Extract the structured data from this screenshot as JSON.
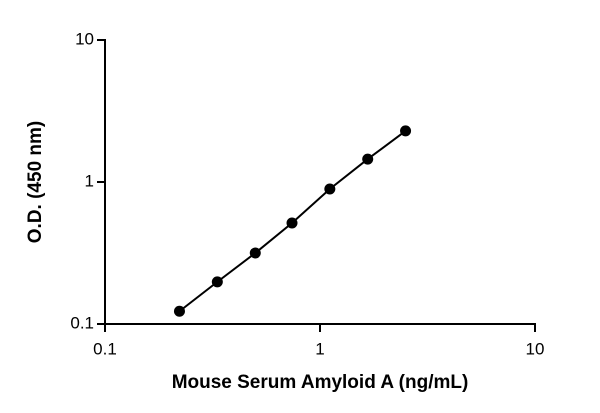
{
  "chart_data": {
    "type": "line",
    "log_x": true,
    "log_y": true,
    "x_label": "Mouse Serum Amyloid A (ng/mL)",
    "y_label": "O.D. (450 nm)",
    "x": [
      0.222,
      0.333,
      0.5,
      0.741,
      1.111,
      1.667,
      2.5
    ],
    "series": [
      {
        "color": "#000000",
        "values": [
          0.123,
          0.198,
          0.316,
          0.514,
          0.893,
          1.45,
          2.29
        ]
      }
    ],
    "xlim": [
      0.1,
      10
    ],
    "xticks": [
      0.1,
      1,
      10
    ],
    "ylim": [
      0.1,
      10
    ],
    "yticks": [
      0.1,
      1,
      10
    ],
    "grid": false
  }
}
